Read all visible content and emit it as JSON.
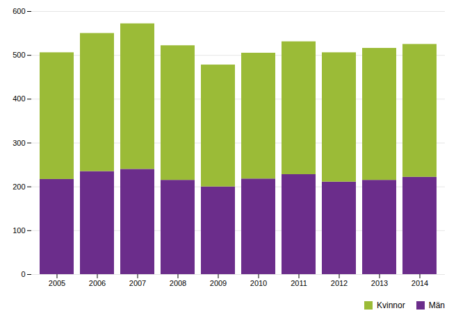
{
  "chart_data": {
    "type": "bar",
    "stacked": true,
    "categories": [
      "2005",
      "2006",
      "2007",
      "2008",
      "2009",
      "2010",
      "2011",
      "2012",
      "2013",
      "2014"
    ],
    "series": [
      {
        "name": "Män",
        "color": "#6B2D8B",
        "values": [
          217,
          235,
          240,
          215,
          200,
          218,
          228,
          211,
          215,
          222
        ]
      },
      {
        "name": "Kvinnor",
        "color": "#9BBB37",
        "values": [
          289,
          315,
          332,
          307,
          278,
          287,
          303,
          295,
          301,
          303
        ]
      }
    ],
    "ylim": [
      0,
      600
    ],
    "yticks": [
      0,
      100,
      200,
      300,
      400,
      500,
      600
    ],
    "grid": true,
    "legend": "lower right"
  }
}
